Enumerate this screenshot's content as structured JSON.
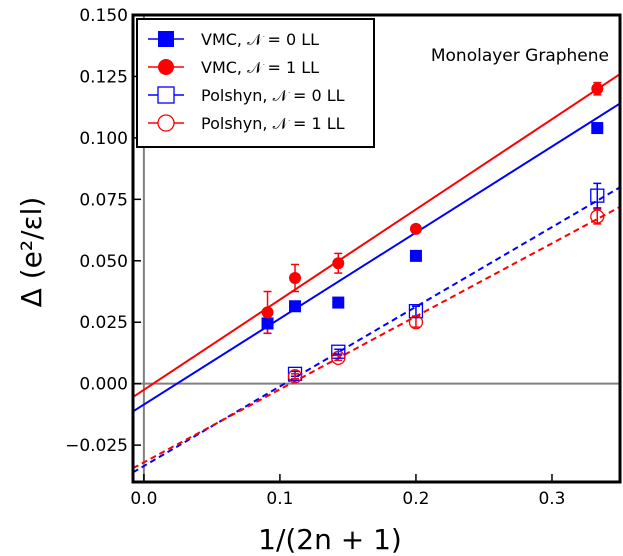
{
  "chart_data": {
    "type": "scatter",
    "annotation": "Monolayer Graphene",
    "xlabel": "1/(2n + 1)",
    "ylabel": "Δ (e²/εl)",
    "xlim": [
      -0.008,
      0.35
    ],
    "ylim": [
      -0.04,
      0.15
    ],
    "xticks": [
      "0.0",
      "0.1",
      "0.2",
      "0.3"
    ],
    "yticks": [
      "−0.025",
      "0.000",
      "0.025",
      "0.050",
      "0.075",
      "0.100",
      "0.125",
      "0.150"
    ],
    "zero_lines": {
      "x": 0,
      "y": 0,
      "color": "#808080"
    },
    "legend_position": "top-left",
    "series": [
      {
        "name": "VMC, 𝒩 = 0 LL",
        "color": "#0000ff",
        "marker": "square-filled",
        "fit_line": "solid",
        "x": [
          0.0909,
          0.1111,
          0.1429,
          0.2,
          0.3333
        ],
        "y": [
          0.0245,
          0.0315,
          0.033,
          0.052,
          0.104
        ],
        "yerr": [
          0.004,
          0.002,
          0.0015,
          0.0015,
          0.0015
        ],
        "fit": {
          "intercept": -0.0085,
          "slope": 0.35
        }
      },
      {
        "name": "VMC, 𝒩 = 1 LL",
        "color": "#ff0000",
        "marker": "circle-filled",
        "fit_line": "solid",
        "x": [
          0.0909,
          0.1111,
          0.1429,
          0.2,
          0.3333
        ],
        "y": [
          0.029,
          0.043,
          0.049,
          0.063,
          0.12
        ],
        "yerr": [
          0.0085,
          0.0055,
          0.004,
          0.0015,
          0.0025
        ],
        "fit": {
          "intercept": -0.0025,
          "slope": 0.367
        }
      },
      {
        "name": "Polshyn, 𝒩 = 0 LL",
        "color": "#0000ff",
        "marker": "square-open",
        "fit_line": "dashed",
        "x": [
          0.1111,
          0.1429,
          0.2,
          0.3333
        ],
        "y": [
          0.004,
          0.013,
          0.0295,
          0.0765
        ],
        "yerr": [
          0.001,
          0.001,
          0.002,
          0.005
        ],
        "fit": {
          "intercept": -0.0335,
          "slope": 0.324
        }
      },
      {
        "name": "Polshyn, 𝒩 = 1 LL",
        "color": "#ff0000",
        "marker": "circle-open",
        "fit_line": "dashed",
        "x": [
          0.1111,
          0.1429,
          0.2,
          0.3333
        ],
        "y": [
          0.003,
          0.0105,
          0.025,
          0.068
        ],
        "yerr": [
          0.001,
          0.001,
          0.002,
          0.003
        ],
        "fit": {
          "intercept": -0.032,
          "slope": 0.297
        }
      }
    ]
  }
}
